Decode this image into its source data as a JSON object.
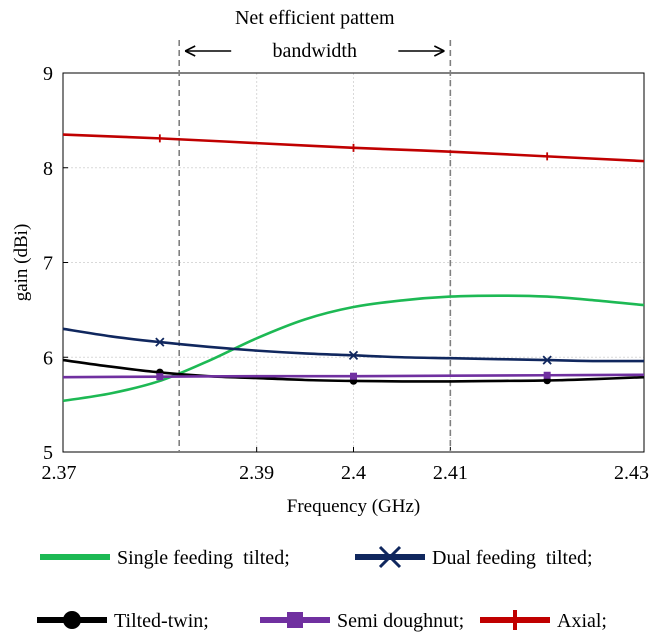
{
  "chart_data": {
    "type": "line",
    "xlabel": "Frequency (GHz)",
    "ylabel": "gain (dBi)",
    "xlim": [
      2.37,
      2.43
    ],
    "ylim": [
      5,
      9
    ],
    "xticks": [
      2.37,
      2.39,
      2.4,
      2.41,
      2.43
    ],
    "yticks": [
      5,
      6,
      7,
      8,
      9
    ],
    "grid": true,
    "legend_position": "bottom",
    "annotation": {
      "line1": "Net efficient pattem",
      "line2": "bandwidth",
      "x_start": 2.382,
      "x_end": 2.41
    },
    "series": [
      {
        "name": "Single feeding  tilted;",
        "color": "#1db954",
        "marker": "none",
        "x": [
          2.37,
          2.375,
          2.38,
          2.385,
          2.39,
          2.395,
          2.4,
          2.405,
          2.41,
          2.415,
          2.42,
          2.425,
          2.43
        ],
        "y": [
          5.54,
          5.62,
          5.75,
          5.96,
          6.2,
          6.4,
          6.53,
          6.6,
          6.64,
          6.65,
          6.64,
          6.6,
          6.55
        ]
      },
      {
        "name": "Dual feeding  tilted;",
        "color": "#10275e",
        "marker": "x",
        "marker_x": [
          2.38,
          2.4,
          2.42
        ],
        "x": [
          2.37,
          2.375,
          2.38,
          2.385,
          2.39,
          2.395,
          2.4,
          2.405,
          2.41,
          2.415,
          2.42,
          2.425,
          2.43
        ],
        "y": [
          6.3,
          6.22,
          6.16,
          6.11,
          6.07,
          6.04,
          6.02,
          6.0,
          5.99,
          5.98,
          5.97,
          5.96,
          5.96
        ]
      },
      {
        "name": "Tilted-twin;",
        "color": "#000000",
        "marker": "circle",
        "marker_x": [
          2.38,
          2.4,
          2.42
        ],
        "x": [
          2.37,
          2.375,
          2.38,
          2.385,
          2.39,
          2.395,
          2.4,
          2.405,
          2.41,
          2.415,
          2.42,
          2.425,
          2.43
        ],
        "y": [
          5.97,
          5.9,
          5.84,
          5.8,
          5.78,
          5.76,
          5.75,
          5.745,
          5.745,
          5.75,
          5.755,
          5.77,
          5.79
        ]
      },
      {
        "name": "Semi doughnut;",
        "color": "#7030a0",
        "marker": "square",
        "marker_x": [
          2.38,
          2.4,
          2.42
        ],
        "x": [
          2.37,
          2.38,
          2.39,
          2.4,
          2.41,
          2.42,
          2.43
        ],
        "y": [
          5.79,
          5.795,
          5.8,
          5.8,
          5.805,
          5.81,
          5.815
        ]
      },
      {
        "name": "Axial;",
        "color": "#c00000",
        "marker": "plus",
        "marker_x": [
          2.38,
          2.4,
          2.42
        ],
        "x": [
          2.37,
          2.38,
          2.39,
          2.4,
          2.41,
          2.42,
          2.43
        ],
        "y": [
          8.35,
          8.31,
          8.26,
          8.21,
          8.17,
          8.12,
          8.07
        ]
      }
    ]
  }
}
